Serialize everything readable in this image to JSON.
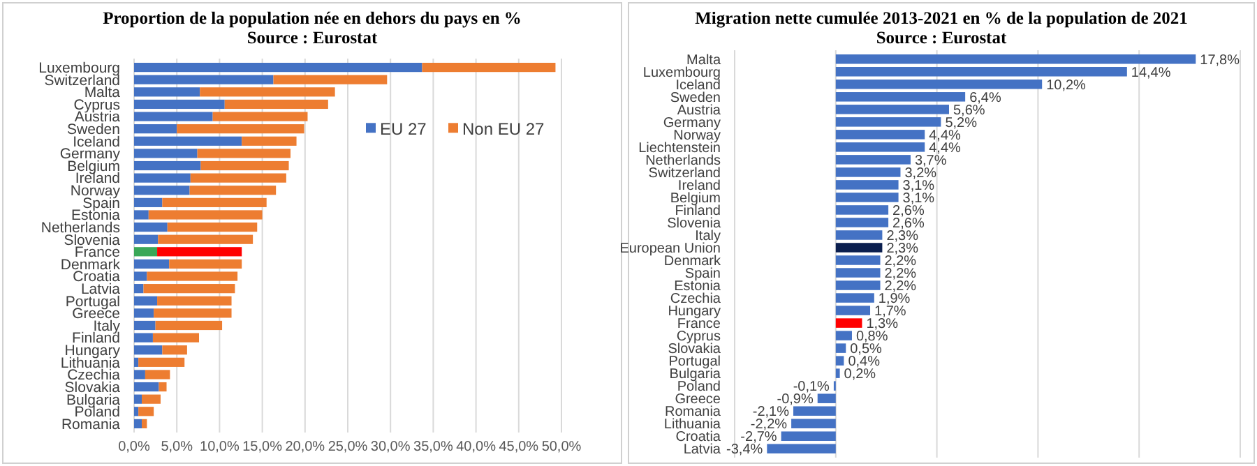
{
  "chart_data": [
    {
      "type": "bar",
      "orientation": "horizontal",
      "stacked": true,
      "title": "Proportion de la population née en dehors du pays en %",
      "subtitle": "Source : Eurostat",
      "categories": [
        "Luxembourg",
        "Switzerland",
        "Malta",
        "Cyprus",
        "Austria",
        "Sweden",
        "Iceland",
        "Germany",
        "Belgium",
        "Ireland",
        "Norway",
        "Spain",
        "Estonia",
        "Netherlands",
        "Slovenia",
        "France",
        "Denmark",
        "Croatia",
        "Latvia",
        "Portugal",
        "Greece",
        "Italy",
        "Finland",
        "Hungary",
        "Lithuania",
        "Czechia",
        "Slovakia",
        "Bulgaria",
        "Poland",
        "Romania"
      ],
      "series": [
        {
          "name": "EU 27",
          "color": "#4472c4",
          "colors": [
            "#4472c4",
            "#4472c4",
            "#4472c4",
            "#4472c4",
            "#4472c4",
            "#4472c4",
            "#4472c4",
            "#4472c4",
            "#4472c4",
            "#4472c4",
            "#4472c4",
            "#4472c4",
            "#4472c4",
            "#4472c4",
            "#4472c4",
            "#3aa757",
            "#4472c4",
            "#4472c4",
            "#4472c4",
            "#4472c4",
            "#4472c4",
            "#4472c4",
            "#4472c4",
            "#4472c4",
            "#4472c4",
            "#4472c4",
            "#4472c4",
            "#4472c4",
            "#4472c4",
            "#4472c4"
          ],
          "values": [
            33.7,
            16.3,
            7.7,
            10.6,
            9.2,
            5.0,
            12.6,
            7.4,
            7.8,
            6.6,
            6.5,
            3.3,
            1.7,
            3.9,
            2.8,
            2.7,
            4.1,
            1.5,
            1.1,
            2.7,
            2.3,
            2.5,
            2.2,
            3.3,
            0.5,
            1.3,
            2.9,
            0.9,
            0.5,
            0.9
          ]
        },
        {
          "name": "Non EU 27",
          "color": "#ed7d31",
          "colors": [
            "#ed7d31",
            "#ed7d31",
            "#ed7d31",
            "#ed7d31",
            "#ed7d31",
            "#ed7d31",
            "#ed7d31",
            "#ed7d31",
            "#ed7d31",
            "#ed7d31",
            "#ed7d31",
            "#ed7d31",
            "#ed7d31",
            "#ed7d31",
            "#ed7d31",
            "#ff0000",
            "#ed7d31",
            "#ed7d31",
            "#ed7d31",
            "#ed7d31",
            "#ed7d31",
            "#ed7d31",
            "#ed7d31",
            "#ed7d31",
            "#ed7d31",
            "#ed7d31",
            "#ed7d31",
            "#ed7d31",
            "#ed7d31",
            "#ed7d31"
          ],
          "values": [
            15.6,
            13.3,
            15.8,
            12.1,
            11.1,
            14.9,
            6.4,
            10.9,
            10.3,
            11.2,
            10.1,
            12.2,
            13.3,
            10.5,
            11.1,
            9.9,
            8.5,
            10.6,
            10.7,
            8.7,
            9.1,
            7.8,
            5.4,
            2.9,
            5.4,
            2.9,
            0.9,
            2.2,
            1.8,
            0.6
          ]
        }
      ],
      "xlim": [
        0,
        50
      ],
      "xticks": [
        {
          "value": 0,
          "label": "0,0%"
        },
        {
          "value": 5,
          "label": "5,0%"
        },
        {
          "value": 10,
          "label": "10,0%"
        },
        {
          "value": 15,
          "label": "15,0%"
        },
        {
          "value": 20,
          "label": "20,0%"
        },
        {
          "value": 25,
          "label": "25,0%"
        },
        {
          "value": 30,
          "label": "30,0%"
        },
        {
          "value": 35,
          "label": "35,0%"
        },
        {
          "value": 40,
          "label": "40,0%"
        },
        {
          "value": 45,
          "label": "45,0%"
        },
        {
          "value": 50,
          "label": "50,0%"
        }
      ],
      "grid": "x",
      "legend": "right"
    },
    {
      "type": "bar",
      "orientation": "horizontal",
      "title": "Migration nette cumulée 2013-2021 en % de la population de 2021",
      "subtitle": "Source : Eurostat",
      "categories": [
        "Malta",
        "Luxembourg",
        "Iceland",
        "Sweden",
        "Austria",
        "Germany",
        "Norway",
        "Liechtenstein",
        "Netherlands",
        "Switzerland",
        "Ireland",
        "Belgium",
        "Finland",
        "Slovenia",
        "Italy",
        "European Union",
        "Denmark",
        "Spain",
        "Estonia",
        "Czechia",
        "Hungary",
        "France",
        "Cyprus",
        "Slovakia",
        "Portugal",
        "Bulgaria",
        "Poland",
        "Greece",
        "Romania",
        "Lithuania",
        "Croatia",
        "Latvia"
      ],
      "values": [
        17.8,
        14.4,
        10.2,
        6.4,
        5.6,
        5.2,
        4.4,
        4.4,
        3.7,
        3.2,
        3.1,
        3.1,
        2.6,
        2.6,
        2.3,
        2.3,
        2.2,
        2.2,
        2.2,
        1.9,
        1.7,
        1.3,
        0.8,
        0.5,
        0.4,
        0.2,
        -0.1,
        -0.9,
        -2.1,
        -2.2,
        -2.7,
        -3.4
      ],
      "colors": [
        "#4472c4",
        "#4472c4",
        "#4472c4",
        "#4472c4",
        "#4472c4",
        "#4472c4",
        "#4472c4",
        "#4472c4",
        "#4472c4",
        "#4472c4",
        "#4472c4",
        "#4472c4",
        "#4472c4",
        "#4472c4",
        "#4472c4",
        "#0b1f4f",
        "#4472c4",
        "#4472c4",
        "#4472c4",
        "#4472c4",
        "#4472c4",
        "#ff0000",
        "#4472c4",
        "#4472c4",
        "#4472c4",
        "#4472c4",
        "#4472c4",
        "#4472c4",
        "#4472c4",
        "#4472c4",
        "#4472c4",
        "#4472c4"
      ],
      "value_labels": [
        "17,8%",
        "14,4%",
        "10,2%",
        "6,4%",
        "5,6%",
        "5,2%",
        "4,4%",
        "4,4%",
        "3,7%",
        "3,2%",
        "3,1%",
        "3,1%",
        "2,6%",
        "2,6%",
        "2,3%",
        "2,3%",
        "2,2%",
        "2,2%",
        "2,2%",
        "1,9%",
        "1,7%",
        "1,3%",
        "0,8%",
        "0,5%",
        "0,4%",
        "0,2%",
        "-0,1%",
        "-0,9%",
        "-2,1%",
        "-2,2%",
        "-2,7%",
        "-3,4%"
      ],
      "xlim": [
        -5,
        20
      ],
      "xticks": [
        {
          "value": -5,
          "label": null
        },
        {
          "value": 0,
          "label": null
        },
        {
          "value": 5,
          "label": null
        },
        {
          "value": 10,
          "label": null
        },
        {
          "value": 15,
          "label": null
        },
        {
          "value": 20,
          "label": null
        }
      ],
      "tick_labels": "y",
      "grid": "x"
    }
  ]
}
